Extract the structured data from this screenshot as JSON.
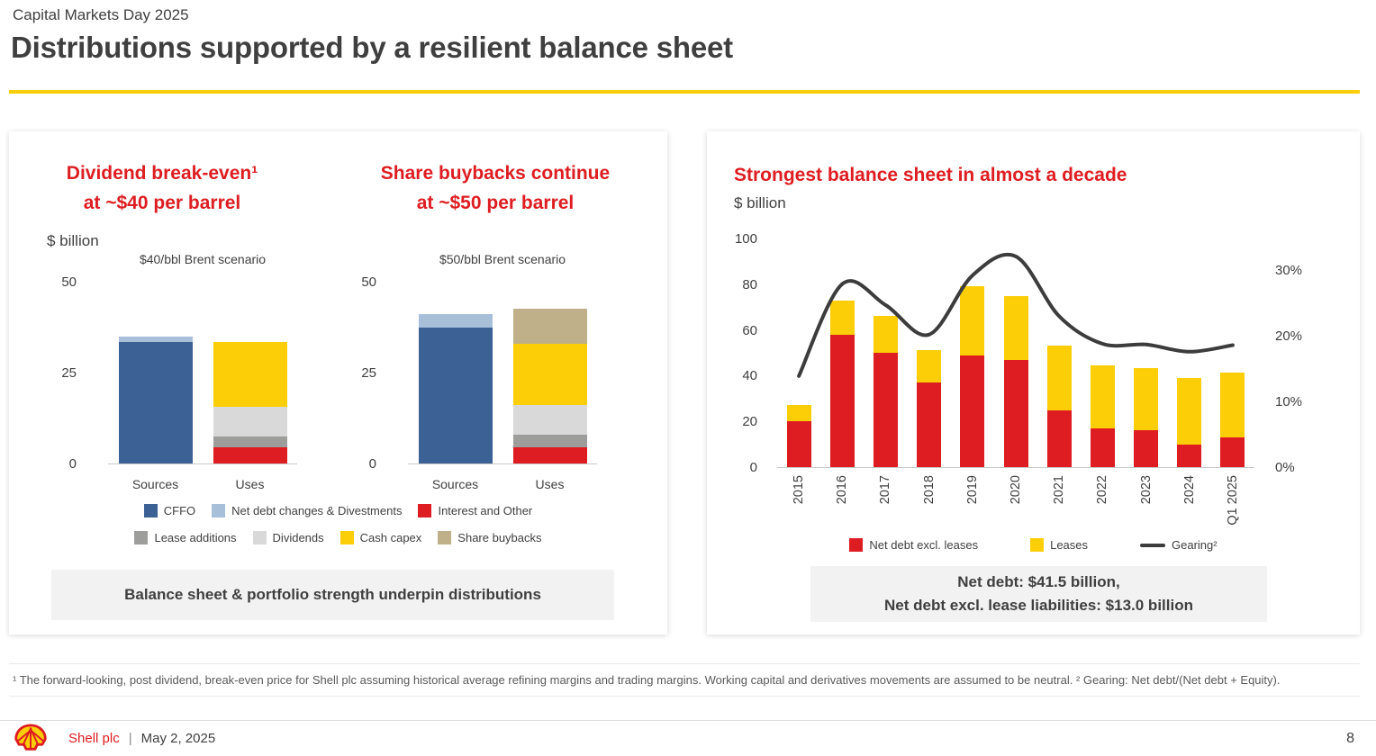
{
  "header": {
    "eyebrow": "Capital Markets Day 2025",
    "title": "Distributions supported by a resilient balance sheet"
  },
  "colors": {
    "accent_red": "#DD1D21",
    "accent_yellow": "#FBCE07",
    "cffo_blue": "#3C6295",
    "light_blue": "#A7BFD9",
    "dark_gray": "#9D9D9C",
    "light_gray": "#D9D9D9",
    "tan": "#BFB089",
    "line_dark": "#3C3C3C"
  },
  "left_panel": {
    "chart1_title": {
      "line1": "Dividend break-even¹",
      "line2": "at ~$40 per barrel"
    },
    "chart2_title": {
      "line1": "Share buybacks continue",
      "line2": "at ~$50 per barrel"
    },
    "unit_label": "$ billion",
    "legend_row1": [
      {
        "label": "CFFO",
        "color_key": "cffo_blue",
        "swatch": "square"
      },
      {
        "label": "Net debt changes & Divestments",
        "color_key": "light_blue",
        "swatch": "square"
      },
      {
        "label": "Interest and Other",
        "color_key": "accent_red",
        "swatch": "square"
      }
    ],
    "legend_row2": [
      {
        "label": "Lease additions",
        "color_key": "dark_gray",
        "swatch": "square"
      },
      {
        "label": "Dividends",
        "color_key": "light_gray",
        "swatch": "square"
      },
      {
        "label": "Cash capex",
        "color_key": "accent_yellow",
        "swatch": "square"
      },
      {
        "label": "Share buybacks",
        "color_key": "tan",
        "swatch": "square"
      }
    ],
    "callout": "Balance sheet & portfolio strength underpin distributions"
  },
  "right_panel": {
    "title": "Strongest balance sheet in almost a decade",
    "unit_label": "$ billion",
    "legend": [
      {
        "label": "Net debt excl. leases",
        "color_key": "accent_red",
        "swatch": "square"
      },
      {
        "label": "Leases",
        "color_key": "accent_yellow",
        "swatch": "square"
      },
      {
        "label": "Gearing²",
        "color_key": "line_dark",
        "swatch": "line"
      }
    ],
    "callout_line1": "Net debt: $41.5 billion,",
    "callout_line2": "Net debt excl. lease liabilities: $13.0 billion"
  },
  "chart_data": [
    {
      "type": "bar",
      "title": "Dividend break-even¹ at ~$40 per barrel",
      "subtitle": "$40/bbl Brent scenario",
      "ylabel": "$ billion",
      "ylim": [
        0,
        50
      ],
      "yticks": [
        0,
        25,
        50
      ],
      "categories": [
        "Sources",
        "Uses"
      ],
      "series": [
        {
          "name": "CFFO",
          "color_key": "cffo_blue",
          "values": [
            33.5,
            0
          ]
        },
        {
          "name": "Net debt changes & Divestments",
          "color_key": "light_blue",
          "values": [
            1.5,
            0
          ]
        },
        {
          "name": "Interest and Other",
          "color_key": "accent_red",
          "values": [
            0,
            4.5
          ]
        },
        {
          "name": "Lease additions",
          "color_key": "dark_gray",
          "values": [
            0,
            3
          ]
        },
        {
          "name": "Dividends",
          "color_key": "light_gray",
          "values": [
            0,
            8
          ]
        },
        {
          "name": "Cash capex",
          "color_key": "accent_yellow",
          "values": [
            0,
            18
          ]
        },
        {
          "name": "Share buybacks",
          "color_key": "tan",
          "values": [
            0,
            0
          ]
        }
      ]
    },
    {
      "type": "bar",
      "title": "Share buybacks continue at ~$50 per barrel",
      "subtitle": "$50/bbl Brent scenario",
      "ylabel": "$ billion",
      "ylim": [
        0,
        50
      ],
      "yticks": [
        0,
        25,
        50
      ],
      "categories": [
        "Sources",
        "Uses"
      ],
      "series": [
        {
          "name": "CFFO",
          "color_key": "cffo_blue",
          "values": [
            37.5,
            0
          ]
        },
        {
          "name": "Net debt changes & Divestments",
          "color_key": "light_blue",
          "values": [
            3.5,
            0
          ]
        },
        {
          "name": "Interest and Other",
          "color_key": "accent_red",
          "values": [
            0,
            4.5
          ]
        },
        {
          "name": "Lease additions",
          "color_key": "dark_gray",
          "values": [
            0,
            3.5
          ]
        },
        {
          "name": "Dividends",
          "color_key": "light_gray",
          "values": [
            0,
            8
          ]
        },
        {
          "name": "Cash capex",
          "color_key": "accent_yellow",
          "values": [
            0,
            17
          ]
        },
        {
          "name": "Share buybacks",
          "color_key": "tan",
          "values": [
            0,
            9.5
          ]
        }
      ]
    },
    {
      "type": "bar-line",
      "title": "Strongest balance sheet in almost a decade",
      "ylabel_left": "$ billion",
      "ylim_left": [
        0,
        100
      ],
      "yticks_left": [
        0,
        20,
        40,
        60,
        80,
        100
      ],
      "ylim_right_pct": [
        0,
        34.8
      ],
      "yticks_right_pct": [
        0,
        10,
        20,
        30
      ],
      "categories": [
        "2015",
        "2016",
        "2017",
        "2018",
        "2019",
        "2020",
        "2021",
        "2022",
        "2023",
        "2024",
        "Q1 2025"
      ],
      "series": [
        {
          "name": "Net debt excl. leases",
          "type": "bar",
          "color_key": "accent_red",
          "values": [
            20,
            58,
            50,
            37,
            49,
            47,
            25,
            17,
            16,
            10,
            13
          ]
        },
        {
          "name": "Leases",
          "type": "bar",
          "color_key": "accent_yellow",
          "values": [
            7,
            15,
            16,
            14,
            30,
            28,
            28,
            27.5,
            27.5,
            29,
            28.5
          ]
        },
        {
          "name": "Gearing²",
          "type": "line",
          "axis": "right",
          "unit": "%",
          "color_key": "line_dark",
          "values": [
            14,
            28,
            24.8,
            20.3,
            29.3,
            32.2,
            23.1,
            18.9,
            18.8,
            17.7,
            18.7
          ]
        }
      ],
      "annotation": "Net debt: $41.5 billion, Net debt excl. lease liabilities: $13.0 billion"
    }
  ],
  "footnote": "¹ The forward-looking, post dividend, break-even price for Shell plc assuming historical average refining margins and trading margins. Working capital and derivatives movements are assumed to be neutral. ² Gearing: Net debt/(Net debt + Equity).",
  "footer": {
    "company": "Shell plc",
    "separator": "|",
    "date": "May 2, 2025",
    "page": "8"
  }
}
